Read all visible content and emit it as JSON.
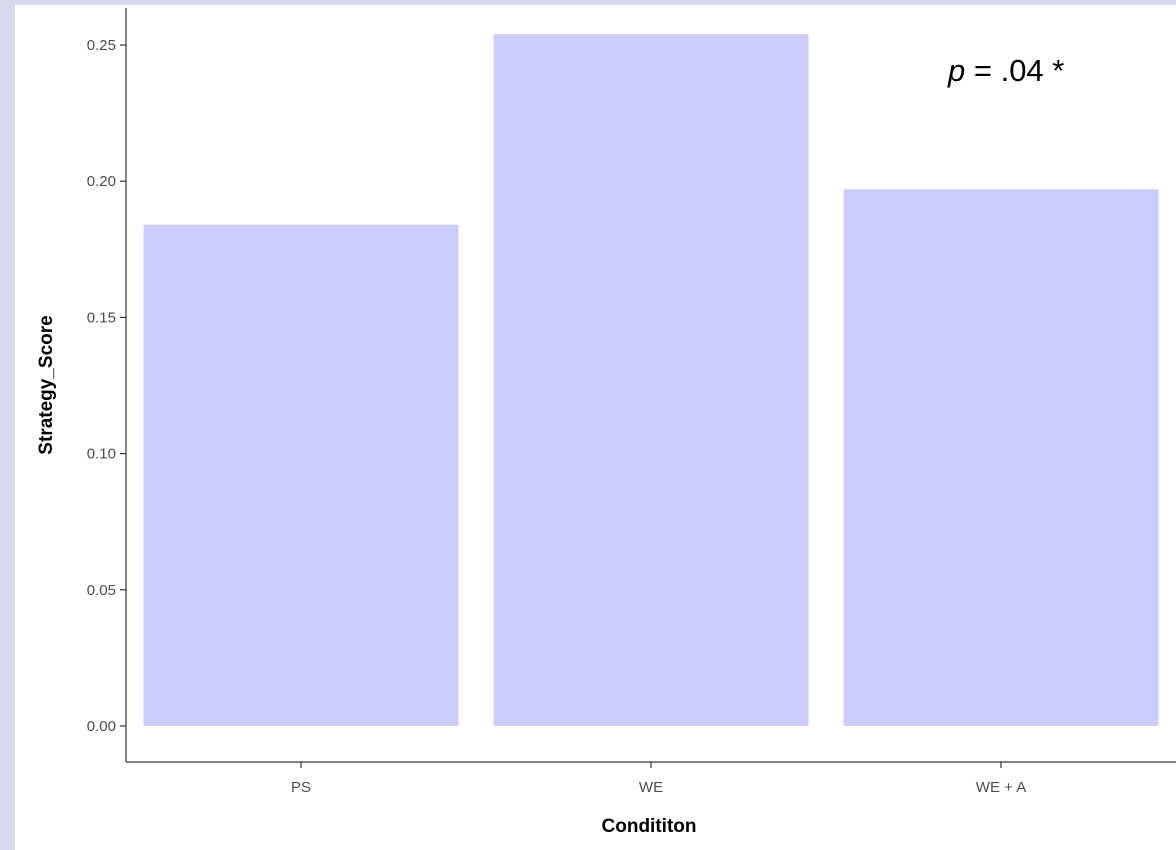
{
  "chart_data": {
    "type": "bar",
    "categories": [
      "PS",
      "WE",
      "WE + A"
    ],
    "values": [
      0.184,
      0.254,
      0.197
    ],
    "xlabel": "Condititon",
    "ylabel": "Strategy_Score",
    "ylim": [
      0,
      0.25
    ],
    "yticks": [
      "0.00",
      "0.05",
      "0.10",
      "0.15",
      "0.20",
      "0.25"
    ],
    "bar_color": "#ccccfc",
    "grid": false,
    "annotation": {
      "italic": "p",
      "rest": " = .04 *"
    }
  }
}
